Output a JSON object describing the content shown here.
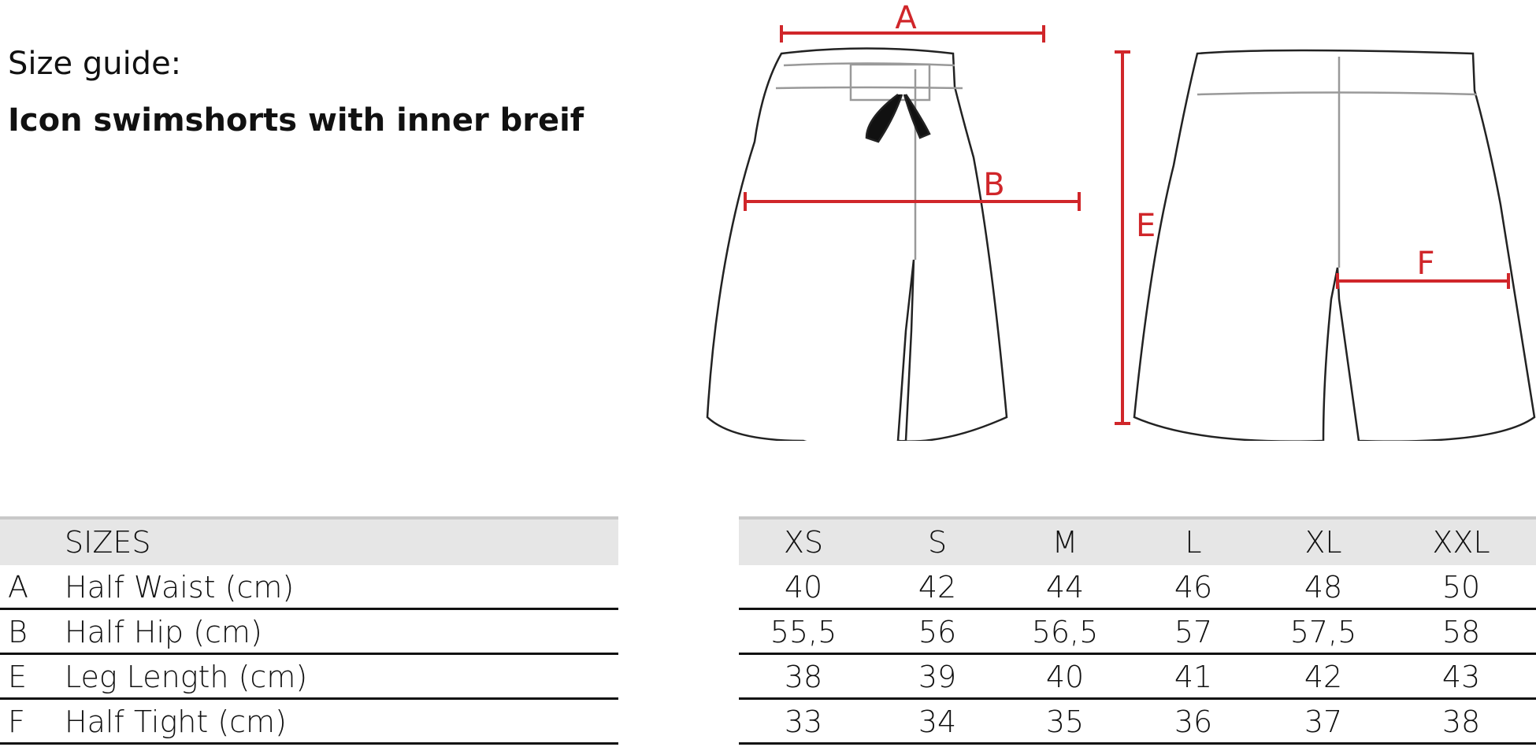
{
  "title_line1": "Size guide:",
  "title_line2": "Icon swimshorts with inner breif",
  "diagram": {
    "labels": [
      "A",
      "B",
      "E",
      "F"
    ],
    "measure_color": "#d0262a"
  },
  "table": {
    "header_label": "SIZES",
    "sizes": [
      "XS",
      "S",
      "M",
      "L",
      "XL",
      "XXL"
    ],
    "rows": [
      {
        "key": "A",
        "label": "Half Waist (cm)",
        "values": [
          "40",
          "42",
          "44",
          "46",
          "48",
          "50"
        ]
      },
      {
        "key": "B",
        "label": "Half Hip (cm)",
        "values": [
          "55,5",
          "56",
          "56,5",
          "57",
          "57,5",
          "58"
        ]
      },
      {
        "key": "E",
        "label": "Leg Length (cm)",
        "values": [
          "38",
          "39",
          "40",
          "41",
          "42",
          "43"
        ]
      },
      {
        "key": "F",
        "label": "Half Tight (cm)",
        "values": [
          "33",
          "34",
          "35",
          "36",
          "37",
          "38"
        ]
      }
    ]
  }
}
